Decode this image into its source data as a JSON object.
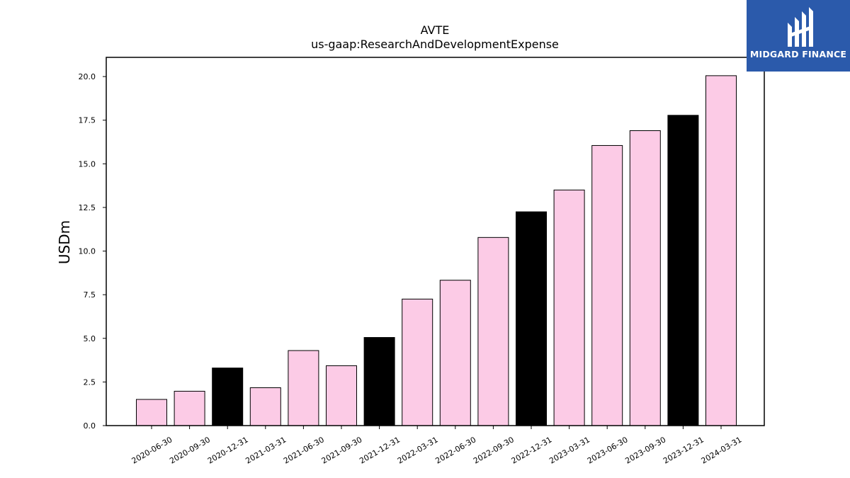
{
  "chart_data": {
    "type": "bar",
    "title": "AVTE",
    "subtitle": "us-gaap:ResearchAndDevelopmentExpense",
    "xlabel": "",
    "ylabel": "USDm",
    "ylim": [
      0,
      21.1
    ],
    "yticks": [
      "0.0",
      "2.5",
      "5.0",
      "7.5",
      "10.0",
      "12.5",
      "15.0",
      "17.5",
      "20.0"
    ],
    "categories": [
      "2020-06-30",
      "2020-09-30",
      "2020-12-31",
      "2021-03-31",
      "2021-06-30",
      "2021-09-30",
      "2021-12-31",
      "2022-03-31",
      "2022-06-30",
      "2022-09-30",
      "2022-12-31",
      "2023-03-31",
      "2023-06-30",
      "2023-09-30",
      "2023-12-31",
      "2024-03-31"
    ],
    "values": [
      1.5,
      1.97,
      3.3,
      2.17,
      4.3,
      3.43,
      5.05,
      7.25,
      8.33,
      10.78,
      12.25,
      13.5,
      16.05,
      16.9,
      17.78,
      20.05
    ],
    "bar_colors": [
      "#fccbe6",
      "#fccbe6",
      "#000000",
      "#fccbe6",
      "#fccbe6",
      "#fccbe6",
      "#000000",
      "#fccbe6",
      "#fccbe6",
      "#fccbe6",
      "#000000",
      "#fccbe6",
      "#fccbe6",
      "#fccbe6",
      "#000000",
      "#fccbe6"
    ],
    "grid": false,
    "legend": "none"
  },
  "logo": {
    "text": "MIDGARD FINANCE",
    "color": "#2b5aab"
  }
}
